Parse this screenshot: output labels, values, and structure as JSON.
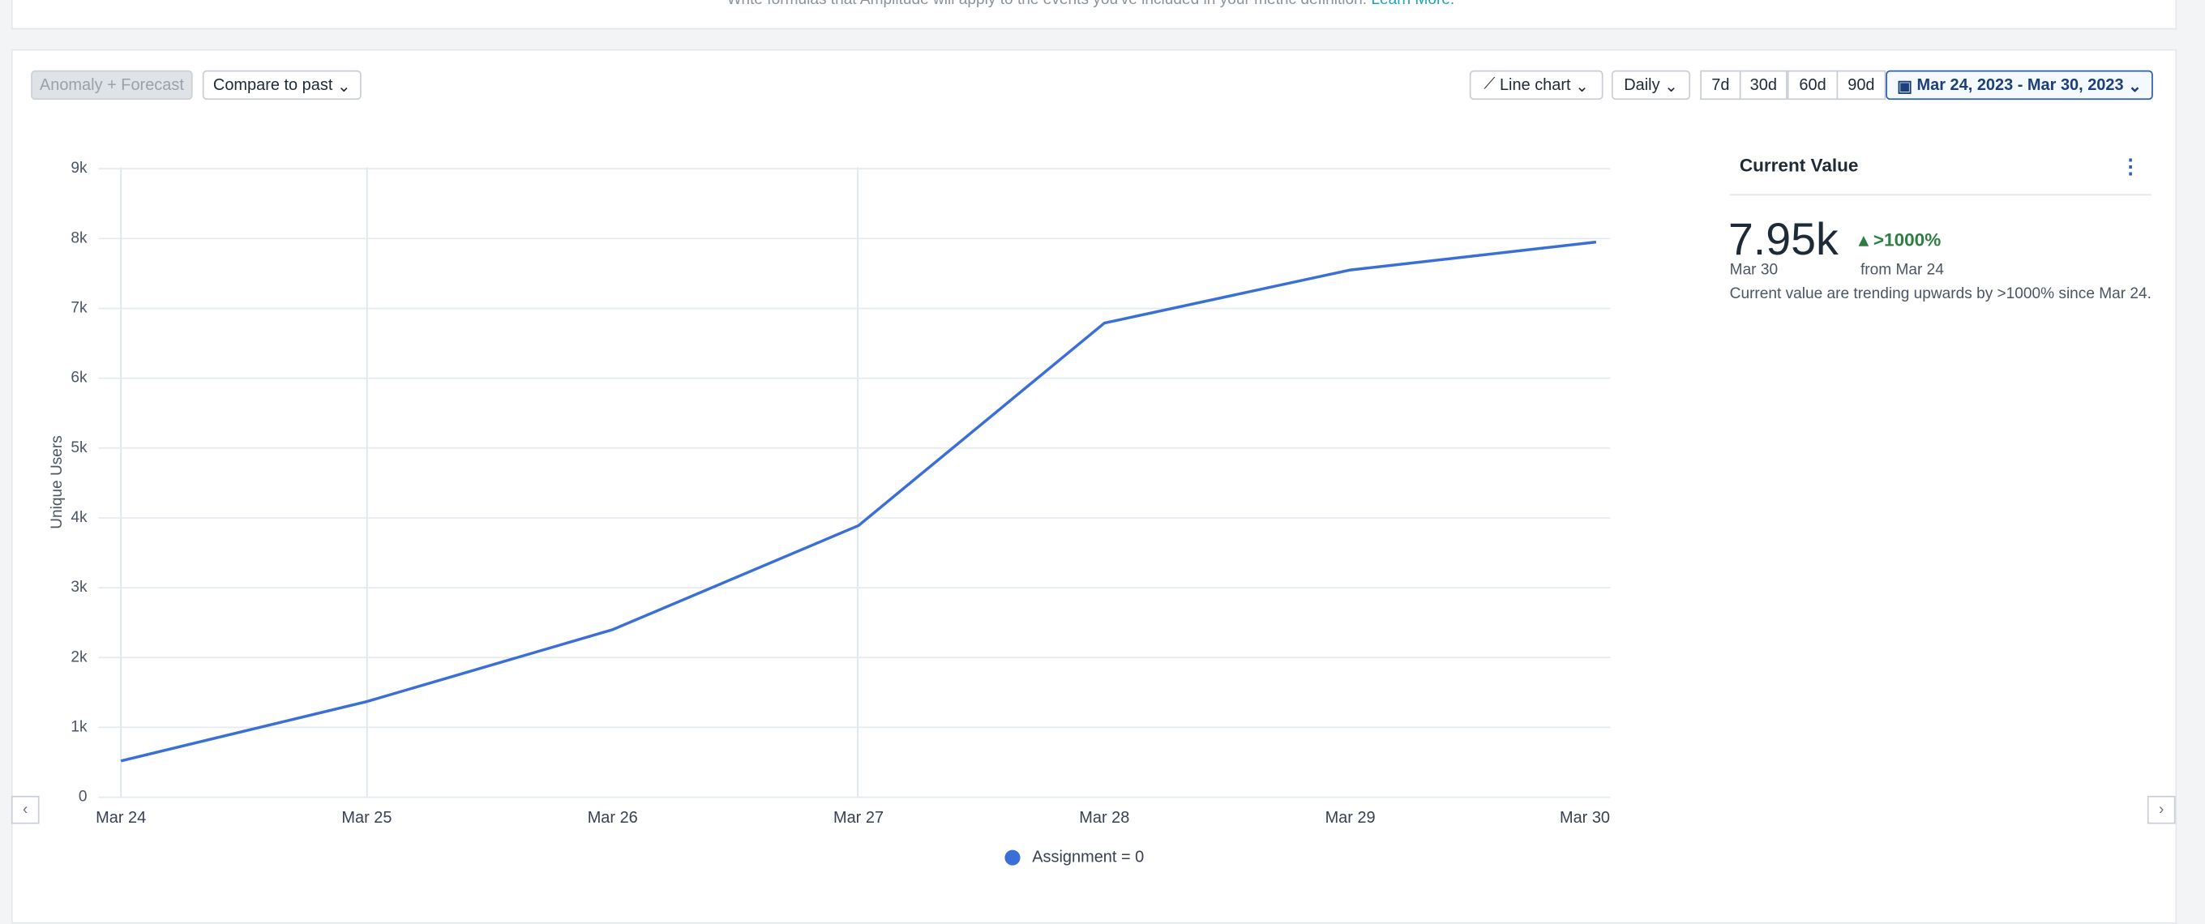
{
  "banner": {
    "text": "Write formulas that Amplitude will apply to the events you've included in your metric definition.",
    "link": "Learn More."
  },
  "toolbar": {
    "anomaly": "Anomaly + Forecast",
    "compare": "Compare to past",
    "chart_type": "Line chart",
    "interval": "Daily",
    "ranges": [
      "7d",
      "30d",
      "60d",
      "90d"
    ],
    "date_range": "Mar 24, 2023 - Mar 30, 2023"
  },
  "summary": {
    "title": "Current Value",
    "value": "7.95k",
    "change": ">1000%",
    "date": "Mar 30",
    "from": "from Mar 24",
    "description": "Current value are trending upwards by >1000% since Mar 24."
  },
  "chart_data": {
    "type": "line",
    "ylabel": "Unique Users",
    "categories": [
      "Mar 24",
      "Mar 25",
      "Mar 26",
      "Mar 27",
      "Mar 28",
      "Mar 29",
      "Mar 30"
    ],
    "series": [
      {
        "name": "Assignment = 0",
        "color": "#3b6fd8",
        "values": [
          520,
          1370,
          2400,
          3890,
          6790,
          7550,
          7950
        ]
      }
    ],
    "ylim": [
      0,
      9000
    ],
    "yticks": [
      0,
      {
        "value": 1000,
        "label": "1k"
      },
      {
        "value": 2000,
        "label": "2k"
      },
      {
        "value": 3000,
        "label": "3k"
      },
      {
        "value": 4000,
        "label": "4k"
      },
      {
        "value": 5000,
        "label": "5k"
      },
      {
        "value": 6000,
        "label": "6k"
      },
      {
        "value": 7000,
        "label": "7k"
      },
      {
        "value": 8000,
        "label": "8k"
      },
      {
        "value": 9000,
        "label": "9k"
      }
    ],
    "grid": true
  }
}
